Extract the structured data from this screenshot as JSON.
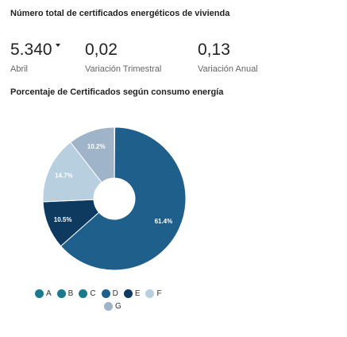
{
  "header": {
    "title": "Número total de certificados energéticos de vivienda"
  },
  "kpis": [
    {
      "value": "5.340",
      "label": "Abril"
    },
    {
      "value": "0,02",
      "label": "Variación Trimestral"
    },
    {
      "value": "0,13",
      "label": "Variación Anual"
    }
  ],
  "chart_data": {
    "type": "pie",
    "title": "Porcentaje de Certificados según consumo energía",
    "categories": [
      "A",
      "B",
      "C",
      "D",
      "E",
      "F",
      "G"
    ],
    "values": [
      0.1,
      0.0,
      0.0,
      61.4,
      10.5,
      14.7,
      10.2
    ],
    "value_labels": [
      "",
      "",
      "",
      "61.4%",
      "10.5%",
      "14.7%",
      "10.2%"
    ],
    "colors": [
      "#1a7a8c",
      "#1a7a8c",
      "#1a7a8c",
      "#1f5f8b",
      "#0f3a5f",
      "#b8cfe0",
      "#9fb4c8"
    ],
    "legend_position": "bottom",
    "donut": true
  }
}
